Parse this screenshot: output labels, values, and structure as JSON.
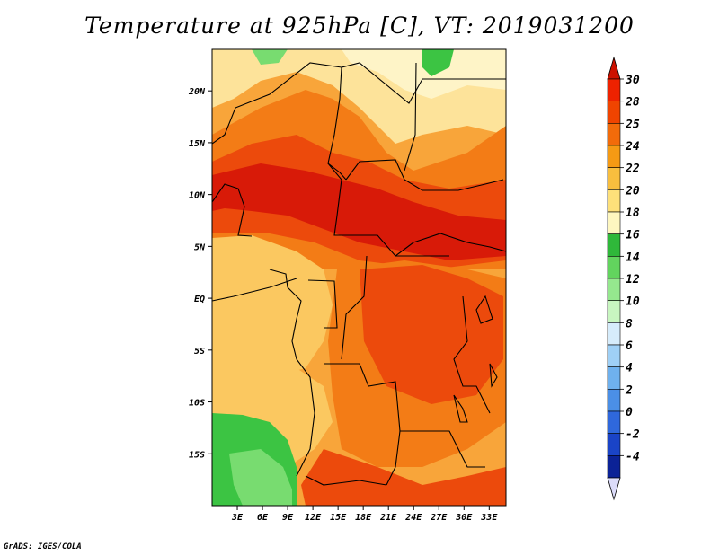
{
  "title": "Temperature at 925hPa [C], VT: 2019031200",
  "credit": "GrADS: IGES/COLA",
  "map_data": {
    "lon_range": [
      0,
      35
    ],
    "lat_range": [
      -20,
      24
    ],
    "lon_ticks": [
      "3E",
      "6E",
      "9E",
      "12E",
      "15E",
      "18E",
      "21E",
      "24E",
      "27E",
      "30E",
      "33E"
    ],
    "lat_ticks": [
      "20N",
      "15N",
      "10N",
      "5N",
      "EQ",
      "5S",
      "10S",
      "15S"
    ]
  },
  "colorbar": {
    "levels": [
      "30",
      "28",
      "25",
      "24",
      "22",
      "20",
      "18",
      "16",
      "14",
      "12",
      "10",
      "8",
      "6",
      "4",
      "2",
      "0",
      "-2",
      "-4"
    ],
    "colors": [
      "#ee2200",
      "#f04400",
      "#f26b0a",
      "#f59a14",
      "#f8be3e",
      "#fde07a",
      "#fef7c0",
      "#2fb83a",
      "#62d45e",
      "#95e88e",
      "#c8f6c0",
      "#d6ecfb",
      "#9fd0f6",
      "#6fb1ee",
      "#4b8fe6",
      "#2f68dc",
      "#1a44c7",
      "#0b2296",
      "#05105e"
    ],
    "top_color": "#cc1100",
    "bottom_color": "#dcdcfa"
  },
  "colors": {
    "very_hot": "#d81a08",
    "hot": "#ec4a0c",
    "warm_orange": "#f37c16",
    "orange": "#f8a53a",
    "light_orange": "#fbc860",
    "pale_yellow": "#fde39a",
    "cream": "#fef4c7",
    "green": "#3cc443",
    "light_green": "#78dc70",
    "boundary": "#000000"
  }
}
